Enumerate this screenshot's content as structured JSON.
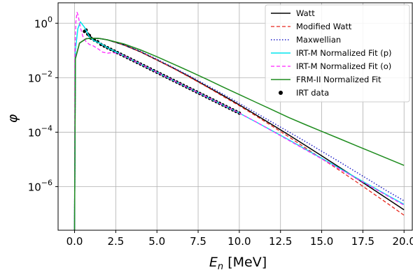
{
  "chart_data": {
    "type": "line",
    "xlabel": "E",
    "xlabel_sub": "n",
    "xlabel_unit": " [MeV]",
    "ylabel": "φ",
    "xlim": [
      -1.0,
      20.5
    ],
    "ylim_log10": [
      -7.6,
      0.75
    ],
    "y_scale": "log",
    "grid": true,
    "legend_position": "top-right",
    "x_ticks": [
      {
        "value": 0.0,
        "label": "0.0"
      },
      {
        "value": 2.5,
        "label": "2.5"
      },
      {
        "value": 5.0,
        "label": "5.0"
      },
      {
        "value": 7.5,
        "label": "7.5"
      },
      {
        "value": 10.0,
        "label": "10.0"
      },
      {
        "value": 12.5,
        "label": "12.5"
      },
      {
        "value": 15.0,
        "label": "15.0"
      },
      {
        "value": 17.5,
        "label": "17.5"
      },
      {
        "value": 20.0,
        "label": "20.0"
      }
    ],
    "y_ticks": [
      {
        "log10": 0,
        "base": "10",
        "exp": "0"
      },
      {
        "log10": -2,
        "base": "10",
        "exp": "−2"
      },
      {
        "log10": -4,
        "base": "10",
        "exp": "−4"
      },
      {
        "log10": -6,
        "base": "10",
        "exp": "−6"
      }
    ],
    "series": [
      {
        "name": "Watt",
        "color": "#000000",
        "dash": "",
        "width": 1.5,
        "points": [
          [
            0.0,
            -7.6
          ],
          [
            0.05,
            -1.3
          ],
          [
            0.3,
            -0.73
          ],
          [
            0.7,
            -0.57
          ],
          [
            1.0,
            -0.55
          ],
          [
            1.5,
            -0.56
          ],
          [
            2.0,
            -0.61
          ],
          [
            3.0,
            -0.8
          ],
          [
            4.0,
            -1.05
          ],
          [
            5.0,
            -1.35
          ],
          [
            6.0,
            -1.65
          ],
          [
            7.0,
            -1.97
          ],
          [
            8.0,
            -2.31
          ],
          [
            9.0,
            -2.65
          ],
          [
            10.0,
            -3.0
          ],
          [
            11.0,
            -3.36
          ],
          [
            12.0,
            -3.73
          ],
          [
            13.0,
            -4.1
          ],
          [
            14.0,
            -4.48
          ],
          [
            15.0,
            -4.87
          ],
          [
            16.0,
            -5.26
          ],
          [
            17.0,
            -5.65
          ],
          [
            18.0,
            -6.05
          ],
          [
            19.0,
            -6.45
          ],
          [
            20.0,
            -6.85
          ]
        ]
      },
      {
        "name": "Modified Watt",
        "color": "#e8281e",
        "dash": "5,3",
        "width": 1.3,
        "points": [
          [
            0.0,
            -7.6
          ],
          [
            0.05,
            -1.3
          ],
          [
            0.3,
            -0.73
          ],
          [
            0.7,
            -0.57
          ],
          [
            1.0,
            -0.55
          ],
          [
            1.5,
            -0.56
          ],
          [
            2.0,
            -0.61
          ],
          [
            3.0,
            -0.8
          ],
          [
            4.0,
            -1.05
          ],
          [
            5.0,
            -1.35
          ],
          [
            6.0,
            -1.66
          ],
          [
            7.0,
            -1.99
          ],
          [
            8.0,
            -2.33
          ],
          [
            9.0,
            -2.68
          ],
          [
            10.0,
            -3.03
          ],
          [
            11.0,
            -3.4
          ],
          [
            12.0,
            -3.78
          ],
          [
            13.0,
            -4.17
          ],
          [
            14.0,
            -4.57
          ],
          [
            15.0,
            -4.97
          ],
          [
            16.0,
            -5.37
          ],
          [
            17.0,
            -5.78
          ],
          [
            18.0,
            -6.2
          ],
          [
            19.0,
            -6.62
          ],
          [
            20.0,
            -7.05
          ]
        ]
      },
      {
        "name": "Maxwellian",
        "color": "#1f1fc8",
        "dash": "1.5,2.5",
        "width": 1.5,
        "points": [
          [
            0.0,
            -7.6
          ],
          [
            0.05,
            -1.3
          ],
          [
            0.3,
            -0.73
          ],
          [
            0.7,
            -0.57
          ],
          [
            1.0,
            -0.55
          ],
          [
            1.5,
            -0.56
          ],
          [
            2.0,
            -0.61
          ],
          [
            3.0,
            -0.79
          ],
          [
            4.0,
            -1.03
          ],
          [
            5.0,
            -1.32
          ],
          [
            6.0,
            -1.63
          ],
          [
            7.0,
            -1.94
          ],
          [
            8.0,
            -2.27
          ],
          [
            9.0,
            -2.6
          ],
          [
            10.0,
            -2.94
          ],
          [
            11.0,
            -3.29
          ],
          [
            12.0,
            -3.64
          ],
          [
            13.0,
            -3.99
          ],
          [
            14.0,
            -4.34
          ],
          [
            15.0,
            -4.7
          ],
          [
            16.0,
            -5.06
          ],
          [
            17.0,
            -5.43
          ],
          [
            18.0,
            -5.8
          ],
          [
            19.0,
            -6.17
          ],
          [
            20.0,
            -6.52
          ]
        ]
      },
      {
        "name": "IRT-M Normalized Fit (p)",
        "color": "#00e5ee",
        "dash": "",
        "width": 1.5,
        "points": [
          [
            0.0,
            -7.6
          ],
          [
            0.05,
            -1.0
          ],
          [
            0.2,
            -0.2
          ],
          [
            0.35,
            0.05
          ],
          [
            0.6,
            -0.15
          ],
          [
            0.9,
            -0.5
          ],
          [
            1.2,
            -0.65
          ],
          [
            1.5,
            -0.72
          ],
          [
            2.0,
            -0.9
          ],
          [
            3.0,
            -1.2
          ],
          [
            4.0,
            -1.5
          ],
          [
            5.0,
            -1.8
          ],
          [
            6.0,
            -2.1
          ],
          [
            7.0,
            -2.4
          ],
          [
            8.0,
            -2.7
          ],
          [
            9.0,
            -3.0
          ],
          [
            10.0,
            -3.3
          ],
          [
            11.0,
            -3.62
          ],
          [
            12.0,
            -3.95
          ],
          [
            13.0,
            -4.28
          ],
          [
            14.0,
            -4.62
          ],
          [
            15.0,
            -4.96
          ],
          [
            16.0,
            -5.3
          ],
          [
            17.0,
            -5.64
          ],
          [
            18.0,
            -5.98
          ],
          [
            19.0,
            -6.32
          ],
          [
            20.0,
            -6.65
          ]
        ]
      },
      {
        "name": "IRT-M Normalized Fit (o)",
        "color": "#ff22ff",
        "dash": "5,3",
        "width": 1.3,
        "points": [
          [
            0.0,
            -7.6
          ],
          [
            0.02,
            -1.2
          ],
          [
            0.08,
            0.05
          ],
          [
            0.15,
            0.4
          ],
          [
            0.22,
            0.28
          ],
          [
            0.35,
            -0.15
          ],
          [
            0.5,
            -0.48
          ],
          [
            0.7,
            -0.68
          ],
          [
            0.9,
            -0.78
          ],
          [
            1.1,
            -0.82
          ],
          [
            1.4,
            -0.93
          ],
          [
            1.7,
            -1.06
          ],
          [
            2.0,
            -1.1
          ],
          [
            2.3,
            -1.08
          ],
          [
            2.7,
            -1.12
          ],
          [
            3.0,
            -1.2
          ],
          [
            4.0,
            -1.5
          ],
          [
            5.0,
            -1.8
          ],
          [
            6.0,
            -2.1
          ],
          [
            7.0,
            -2.4
          ],
          [
            8.0,
            -2.7
          ],
          [
            9.0,
            -3.0
          ],
          [
            10.0,
            -3.3
          ],
          [
            11.0,
            -3.62
          ],
          [
            12.0,
            -3.96
          ],
          [
            13.0,
            -4.3
          ],
          [
            14.0,
            -4.64
          ],
          [
            15.0,
            -4.98
          ],
          [
            16.0,
            -5.32
          ],
          [
            17.0,
            -5.66
          ],
          [
            18.0,
            -6.0
          ],
          [
            19.0,
            -6.34
          ],
          [
            20.0,
            -6.68
          ]
        ]
      },
      {
        "name": "FRM-II Normalized Fit",
        "color": "#1e8c1e",
        "dash": "",
        "width": 1.5,
        "points": [
          [
            0.0,
            -7.6
          ],
          [
            0.05,
            -1.3
          ],
          [
            0.3,
            -0.73
          ],
          [
            0.7,
            -0.57
          ],
          [
            1.0,
            -0.55
          ],
          [
            1.5,
            -0.56
          ],
          [
            2.0,
            -0.61
          ],
          [
            3.0,
            -0.76
          ],
          [
            4.0,
            -0.98
          ],
          [
            5.0,
            -1.23
          ],
          [
            6.0,
            -1.5
          ],
          [
            7.0,
            -1.77
          ],
          [
            8.0,
            -2.05
          ],
          [
            9.0,
            -2.34
          ],
          [
            10.0,
            -2.62
          ],
          [
            11.0,
            -2.9
          ],
          [
            12.0,
            -3.18
          ],
          [
            13.0,
            -3.46
          ],
          [
            14.0,
            -3.72
          ],
          [
            15.0,
            -3.97
          ],
          [
            16.0,
            -4.22
          ],
          [
            17.0,
            -4.47
          ],
          [
            18.0,
            -4.72
          ],
          [
            19.0,
            -4.97
          ],
          [
            20.0,
            -5.22
          ]
        ]
      }
    ],
    "scatter": {
      "name": "IRT data",
      "color": "#000000",
      "points": [
        [
          0.6,
          -0.3
        ],
        [
          0.7,
          -0.25
        ],
        [
          0.8,
          -0.4
        ],
        [
          0.9,
          -0.45
        ],
        [
          1.0,
          -0.55
        ],
        [
          1.2,
          -0.62
        ],
        [
          1.4,
          -0.68
        ],
        [
          1.6,
          -0.78
        ],
        [
          1.8,
          -0.84
        ],
        [
          2.0,
          -0.9
        ],
        [
          2.2,
          -0.96
        ],
        [
          2.4,
          -1.02
        ],
        [
          2.6,
          -1.08
        ],
        [
          2.8,
          -1.14
        ],
        [
          3.0,
          -1.2
        ],
        [
          3.2,
          -1.26
        ],
        [
          3.4,
          -1.32
        ],
        [
          3.6,
          -1.38
        ],
        [
          3.8,
          -1.44
        ],
        [
          4.0,
          -1.5
        ],
        [
          4.2,
          -1.56
        ],
        [
          4.4,
          -1.62
        ],
        [
          4.6,
          -1.68
        ],
        [
          4.8,
          -1.74
        ],
        [
          5.0,
          -1.8
        ],
        [
          5.2,
          -1.86
        ],
        [
          5.4,
          -1.92
        ],
        [
          5.6,
          -1.98
        ],
        [
          5.8,
          -2.04
        ],
        [
          6.0,
          -2.1
        ],
        [
          6.2,
          -2.16
        ],
        [
          6.4,
          -2.22
        ],
        [
          6.6,
          -2.28
        ],
        [
          6.8,
          -2.34
        ],
        [
          7.0,
          -2.4
        ],
        [
          7.2,
          -2.46
        ],
        [
          7.4,
          -2.52
        ],
        [
          7.6,
          -2.58
        ],
        [
          7.8,
          -2.64
        ],
        [
          8.0,
          -2.7
        ],
        [
          8.2,
          -2.76
        ],
        [
          8.4,
          -2.82
        ],
        [
          8.6,
          -2.88
        ],
        [
          8.8,
          -2.94
        ],
        [
          9.0,
          -3.0
        ],
        [
          9.2,
          -3.06
        ],
        [
          9.4,
          -3.12
        ],
        [
          9.6,
          -3.18
        ],
        [
          9.8,
          -3.24
        ],
        [
          10.0,
          -3.3
        ]
      ]
    }
  }
}
